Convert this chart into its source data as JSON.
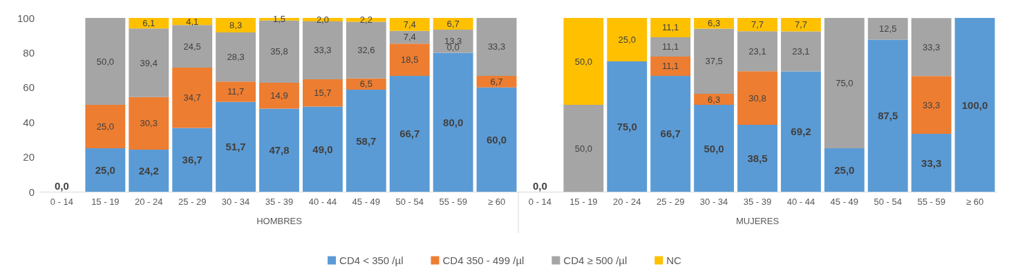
{
  "chart_data": {
    "type": "bar",
    "stacked": true,
    "ylim": [
      0,
      100
    ],
    "yticks": [
      0,
      20,
      40,
      60,
      80,
      100
    ],
    "grid": false,
    "legend": "bottom",
    "categories": [
      "0 - 14",
      "15 - 19",
      "20 - 24",
      "25 - 29",
      "30 - 34",
      "35 - 39",
      "40 - 44",
      "45 - 49",
      "50 - 54",
      "55 - 59",
      "≥ 60",
      "0 - 14",
      "15 - 19",
      "20 - 24",
      "25 - 29",
      "30 - 34",
      "35 - 39",
      "40 - 44",
      "45 - 49",
      "50 - 54",
      "55 - 59",
      "≥ 60"
    ],
    "annotations": [
      "HOMBRES",
      "MUJERES"
    ],
    "series": [
      {
        "name": "CD4 < 350 /µl",
        "color": "#5b9bd5",
        "values": [
          0,
          25.0,
          24.2,
          36.7,
          51.7,
          47.8,
          49.0,
          58.7,
          66.7,
          80.0,
          60.0,
          0,
          null,
          75.0,
          66.7,
          50.0,
          38.5,
          69.2,
          25.0,
          87.5,
          33.3,
          100.0
        ],
        "value_labels": [
          "0,0",
          "25,0",
          "24,2",
          "36,7",
          "51,7",
          "47,8",
          "49,0",
          "58,7",
          "66,7",
          "80,0",
          "60,0",
          "0,0",
          null,
          "75,0",
          "66,7",
          "50,0",
          "38,5",
          "69,2",
          "25,0",
          "87,5",
          "33,3",
          "100,0"
        ]
      },
      {
        "name": "CD4 350 - 499 /µl",
        "color": "#ed7d31",
        "values": [
          null,
          25.0,
          30.3,
          34.7,
          11.7,
          14.9,
          15.7,
          6.5,
          18.5,
          0,
          6.7,
          null,
          null,
          null,
          11.1,
          6.3,
          30.8,
          null,
          null,
          null,
          33.3,
          null
        ],
        "value_labels": [
          null,
          "25,0",
          "30,3",
          "34,7",
          "11,7",
          "14,9",
          "15,7",
          "6,5",
          "18,5",
          "0,0",
          "6,7",
          null,
          null,
          null,
          "11,1",
          "6,3",
          "30,8",
          null,
          null,
          null,
          "33,3",
          null
        ]
      },
      {
        "name": "CD4 ≥ 500 /µl",
        "color": "#a5a5a5",
        "values": [
          null,
          50.0,
          39.4,
          24.5,
          28.3,
          35.8,
          33.3,
          32.6,
          7.4,
          13.3,
          33.3,
          null,
          50.0,
          null,
          11.1,
          37.5,
          23.1,
          23.1,
          75.0,
          12.5,
          33.3,
          null
        ],
        "value_labels": [
          null,
          "50,0",
          "39,4",
          "24,5",
          "28,3",
          "35,8",
          "33,3",
          "32,6",
          "7,4",
          "13,3",
          "33,3",
          null,
          "50,0",
          null,
          "11,1",
          "37,5",
          "23,1",
          "23,1",
          "75,0",
          "12,5",
          "33,3",
          null
        ]
      },
      {
        "name": "NC",
        "color": "#ffc000",
        "values": [
          null,
          null,
          6.1,
          4.1,
          8.3,
          1.5,
          2.0,
          2.2,
          7.4,
          6.7,
          null,
          null,
          50.0,
          25.0,
          11.1,
          6.3,
          7.7,
          7.7,
          null,
          null,
          null,
          null
        ],
        "value_labels": [
          null,
          null,
          "6,1",
          "4,1",
          "8,3",
          "1,5",
          "2,0",
          "2,2",
          "7,4",
          "6,7",
          null,
          null,
          "50,0",
          "25,0",
          "11,1",
          "6,3",
          "7,7",
          "7,7",
          null,
          null,
          null,
          null
        ]
      }
    ]
  }
}
